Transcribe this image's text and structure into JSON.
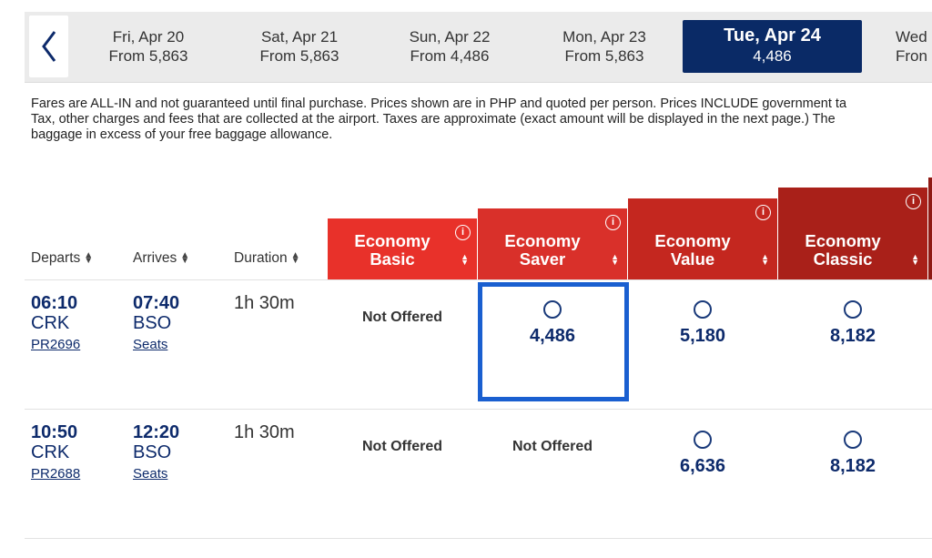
{
  "date_strip": {
    "dates": [
      {
        "day": "Fri, Apr 20",
        "fare": "From 5,863"
      },
      {
        "day": "Sat, Apr 21",
        "fare": "From 5,863"
      },
      {
        "day": "Sun, Apr 22",
        "fare": "From 4,486"
      },
      {
        "day": "Mon, Apr 23",
        "fare": "From 5,863"
      },
      {
        "day": "Tue, Apr 24",
        "fare": "4,486"
      },
      {
        "day": "Wed",
        "fare": "Fron"
      }
    ],
    "active_index": 4
  },
  "notice": {
    "line1": "Fares are ALL-IN and not guaranteed until final purchase. Prices shown are in PHP and quoted per person. Prices INCLUDE government ta",
    "line2": "Tax, other charges and fees that are collected at the airport. Taxes are approximate (exact amount will be displayed in the next page.) The",
    "line3": "baggage in excess of your free baggage allowance."
  },
  "columns": {
    "departs": "Departs",
    "arrives": "Arrives",
    "duration": "Duration"
  },
  "fare_classes": [
    {
      "line1": "Economy",
      "line2": "Basic",
      "color": "#e8312a"
    },
    {
      "line1": "Economy",
      "line2": "Saver",
      "color": "#d9302a"
    },
    {
      "line1": "Economy",
      "line2": "Value",
      "color": "#c4271f"
    },
    {
      "line1": "Economy",
      "line2": "Classic",
      "color": "#a92019"
    }
  ],
  "flights": [
    {
      "depart_time": "06:10",
      "depart_airport": "CRK",
      "arrive_time": "07:40",
      "arrive_airport": "BSO",
      "flight_no": "PR2696",
      "seats": "Seats",
      "duration": "1h 30m",
      "fares": [
        "Not Offered",
        "4,486",
        "5,180",
        "8,182"
      ]
    },
    {
      "depart_time": "10:50",
      "depart_airport": "CRK",
      "arrive_time": "12:20",
      "arrive_airport": "BSO",
      "flight_no": "PR2688",
      "seats": "Seats",
      "duration": "1h 30m",
      "fares": [
        "Not Offered",
        "Not Offered",
        "6,636",
        "8,182"
      ]
    }
  ],
  "icons": {
    "prev": "chevron-left-icon",
    "info": "info-icon",
    "sort": "sort-icon",
    "radio": "radio-icon"
  },
  "colors": {
    "navy": "#0a2a66",
    "selection": "#1a5fd0"
  }
}
